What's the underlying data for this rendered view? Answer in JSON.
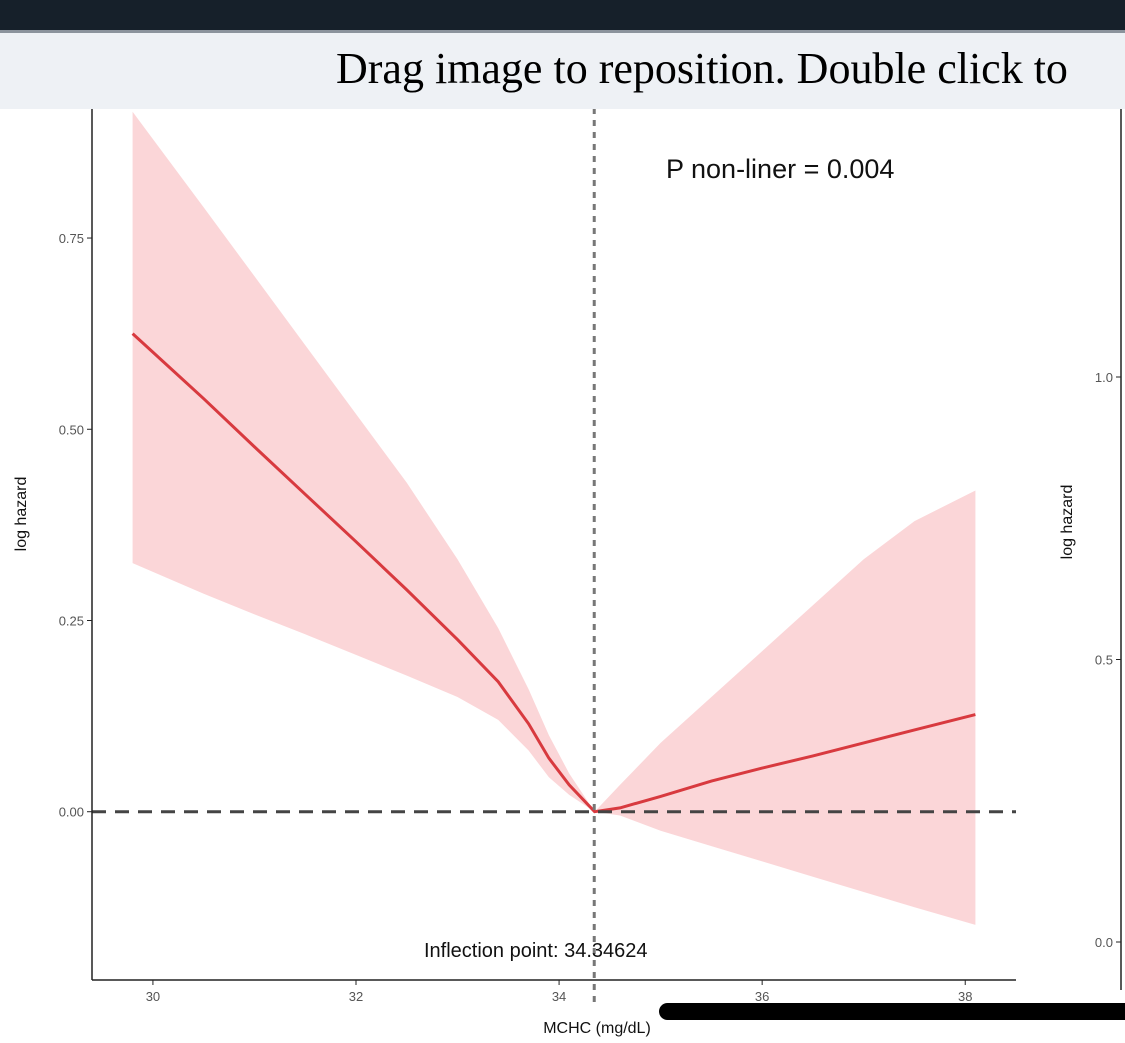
{
  "viewer": {
    "hint": "Drag image to reposition. Double click to"
  },
  "colors": {
    "line": "#d83a3f",
    "ci_band": "#fbd6d8",
    "reference": "#444444",
    "top_bar": "#16202a"
  },
  "chart_data": [
    {
      "type": "line",
      "xlabel": "MCHC (mg/dL)",
      "ylabel": "log hazard",
      "xlim": [
        29.4,
        38.5
      ],
      "ylim": [
        -0.22,
        0.92
      ],
      "x_ticks": [
        30,
        32,
        34,
        36,
        38
      ],
      "x_tick_labels": [
        "30",
        "32",
        "34",
        "36",
        "38"
      ],
      "y_ticks": [
        0.0,
        0.25,
        0.5,
        0.75
      ],
      "y_tick_labels": [
        "0.00",
        "0.25",
        "0.50",
        "0.75"
      ],
      "grid": false,
      "series": [
        {
          "x": [
            29.8,
            30.5,
            31.0,
            31.5,
            32.0,
            32.5,
            33.0,
            33.4,
            33.7,
            33.9,
            34.1,
            34.35,
            34.6,
            35.0,
            35.5,
            36.0,
            36.5,
            37.0,
            37.5,
            38.1
          ],
          "y": [
            0.625,
            0.54,
            0.477,
            0.415,
            0.353,
            0.29,
            0.225,
            0.17,
            0.115,
            0.07,
            0.035,
            0.0,
            0.005,
            0.02,
            0.04,
            0.057,
            0.073,
            0.09,
            0.107,
            0.127
          ],
          "lower": [
            0.325,
            0.285,
            0.258,
            0.232,
            0.205,
            0.178,
            0.15,
            0.12,
            0.08,
            0.045,
            0.022,
            0.0,
            -0.005,
            -0.025,
            -0.045,
            -0.065,
            -0.085,
            -0.105,
            -0.125,
            -0.148
          ],
          "upper": [
            0.915,
            0.79,
            0.7,
            0.61,
            0.52,
            0.43,
            0.33,
            0.24,
            0.16,
            0.1,
            0.05,
            0.0,
            0.035,
            0.09,
            0.15,
            0.21,
            0.27,
            0.33,
            0.38,
            0.42
          ]
        }
      ],
      "reference_y": 0.0,
      "inflection_x": 34.34624,
      "annotations": {
        "p_value": "P non-liner = 0.004",
        "inflection": "Inflection point: 34.34624"
      }
    },
    {
      "type": "line",
      "ylabel": "log hazard",
      "y_ticks": [
        0.0,
        0.5,
        1.0
      ],
      "y_tick_labels": [
        "0.0",
        "0.5",
        "1.0"
      ]
    }
  ]
}
